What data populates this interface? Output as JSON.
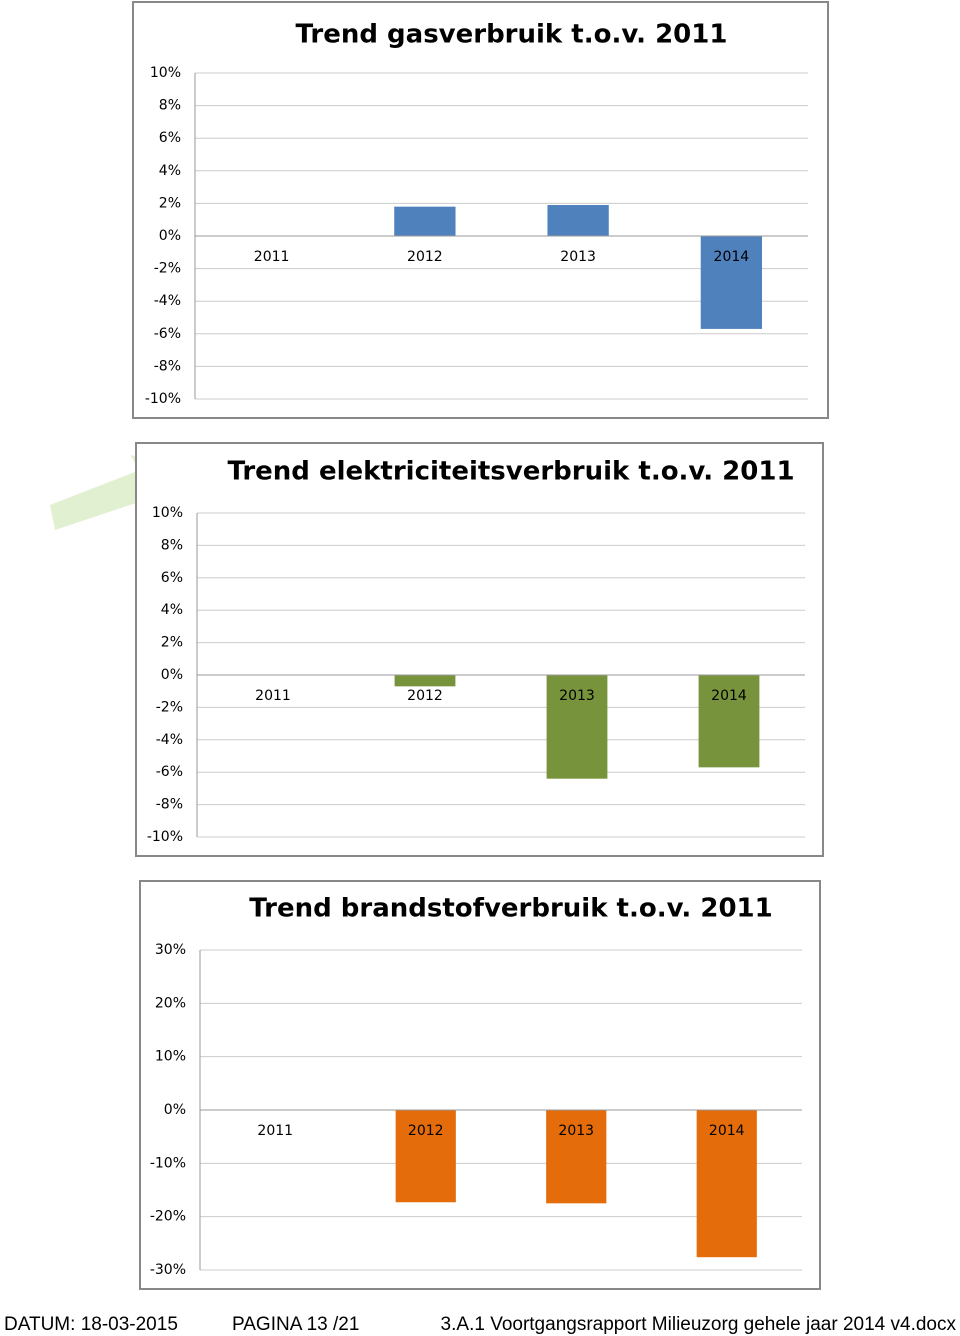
{
  "chart_data": [
    {
      "type": "bar",
      "title": "Trend gasverbruik t.o.v. 2011",
      "categories": [
        "2011",
        "2012",
        "2013",
        "2014"
      ],
      "values": [
        0,
        1.8,
        1.9,
        -5.7
      ],
      "color": "#4f81bd",
      "ylim": [
        -10,
        10
      ],
      "grid": true,
      "yticks": [
        {
          "value": -10,
          "label": "-10%"
        },
        {
          "value": -8,
          "label": "-8%"
        },
        {
          "value": -6,
          "label": "-6%"
        },
        {
          "value": -4,
          "label": "-4%"
        },
        {
          "value": -2,
          "label": "-2%"
        },
        {
          "value": 0,
          "label": "0%"
        },
        {
          "value": 2,
          "label": "2%"
        },
        {
          "value": 4,
          "label": "4%"
        },
        {
          "value": 6,
          "label": "6%"
        },
        {
          "value": 8,
          "label": "8%"
        },
        {
          "value": 10,
          "label": "10%"
        }
      ]
    },
    {
      "type": "bar",
      "title": "Trend elektriciteitsverbruik t.o.v. 2011",
      "categories": [
        "2011",
        "2012",
        "2013",
        "2014"
      ],
      "values": [
        0,
        -0.7,
        -6.4,
        -5.7
      ],
      "color": "#77933c",
      "ylim": [
        -10,
        10
      ],
      "grid": true,
      "yticks": [
        {
          "value": -10,
          "label": "-10%"
        },
        {
          "value": -8,
          "label": "-8%"
        },
        {
          "value": -6,
          "label": "-6%"
        },
        {
          "value": -4,
          "label": "-4%"
        },
        {
          "value": -2,
          "label": "-2%"
        },
        {
          "value": 0,
          "label": "0%"
        },
        {
          "value": 2,
          "label": "2%"
        },
        {
          "value": 4,
          "label": "4%"
        },
        {
          "value": 6,
          "label": "6%"
        },
        {
          "value": 8,
          "label": "8%"
        },
        {
          "value": 10,
          "label": "10%"
        }
      ]
    },
    {
      "type": "bar",
      "title": "Trend brandstofverbruik t.o.v. 2011",
      "categories": [
        "2011",
        "2012",
        "2013",
        "2014"
      ],
      "values": [
        0,
        -17.3,
        -17.5,
        -27.6
      ],
      "color": "#e46c0a",
      "ylim": [
        -30,
        30
      ],
      "grid": true,
      "yticks": [
        {
          "value": -30,
          "label": "-30%"
        },
        {
          "value": -20,
          "label": "-20%"
        },
        {
          "value": -10,
          "label": "-10%"
        },
        {
          "value": 0,
          "label": "0%"
        },
        {
          "value": 10,
          "label": "10%"
        },
        {
          "value": 20,
          "label": "20%"
        },
        {
          "value": 30,
          "label": "30%"
        }
      ]
    }
  ],
  "footer": {
    "date": "DATUM: 18-03-2015",
    "page": "PAGINA 13 /21",
    "file": "3.A.1 Voortgangsrapport Milieuzorg gehele jaar 2014 v4.docx"
  }
}
